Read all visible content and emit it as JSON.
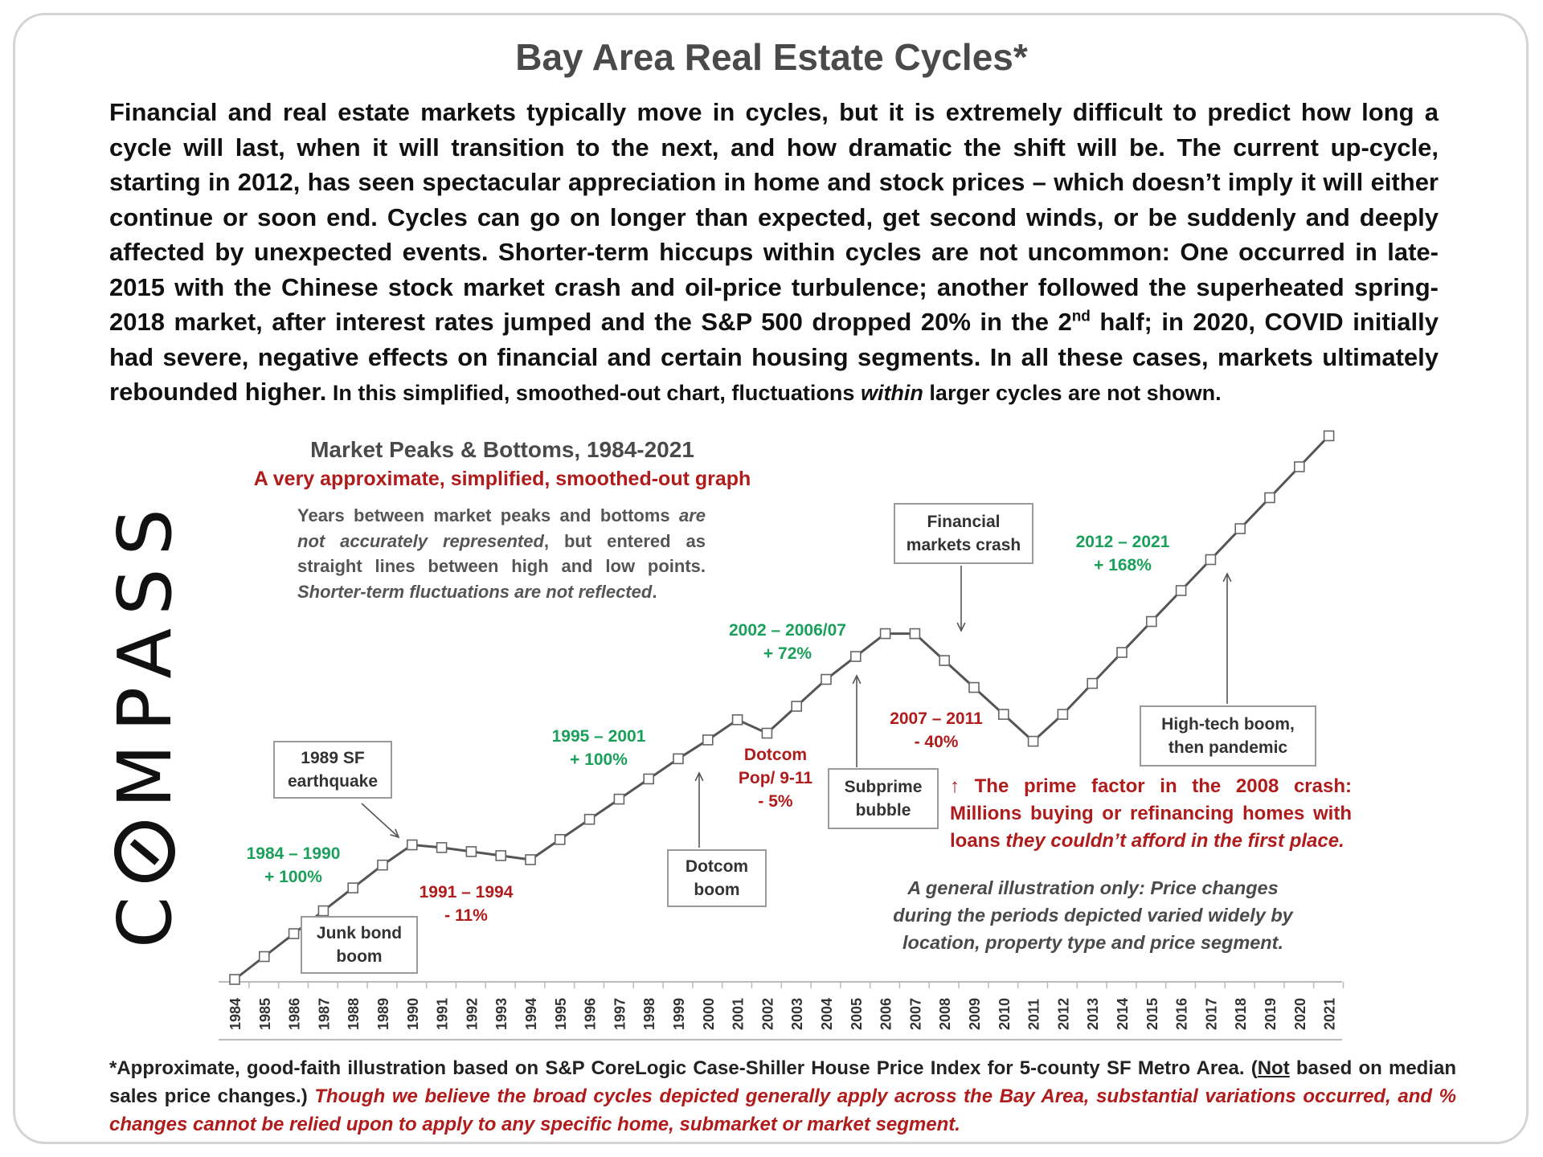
{
  "title": "Bay Area Real Estate Cycles*",
  "intro": {
    "part1": "Financial and real estate markets typically move in cycles, but it is extremely difficult to predict how long a cycle will last, when it will transition to the next, and how dramatic the shift will be. The current up-cycle, starting in 2012, has seen spectacular appreciation in home and stock prices – which doesn’t imply it will either continue or soon end. Cycles can go on longer than expected, get second winds, or be suddenly and deeply affected by unexpected events. Shorter-term hiccups within cycles are not uncommon: One occurred in late-2015 with the Chinese stock market crash and oil-price turbulence; another followed the superheated spring-2018 market, after interest rates jumped and the S&P 500 dropped 20% in the 2",
    "sup": "nd",
    "part2": " half; in 2020, COVID initially had severe, negative effects on financial and certain housing segments. In all these cases, markets ultimately rebounded higher.",
    "small_a": " In this simplified, smoothed-out chart, fluctuations ",
    "small_italic": "within",
    "small_b": " larger cycles are not shown."
  },
  "logo": {
    "before": "C",
    "after": "MPASS",
    "icon": "compass-o-icon"
  },
  "chart_header": {
    "title": "Market Peaks & Bottoms, 1984-2021",
    "subtitle": "A very approximate, simplified, smoothed-out graph",
    "note_a": "Years between market peaks and bottoms ",
    "note_italic1": "are not accurately represented",
    "note_b": ", but entered as straight lines between high and low points. ",
    "note_italic2": "Shorter-term fluctuations are not reflected",
    "note_c": "."
  },
  "chart_data": {
    "type": "line",
    "x": [
      "1984",
      "1985",
      "1986",
      "1987",
      "1988",
      "1989",
      "1990",
      "1991",
      "1992",
      "1993",
      "1994",
      "1995",
      "1996",
      "1997",
      "1998",
      "1999",
      "2000",
      "2001",
      "2002",
      "2003",
      "2004",
      "2005",
      "2006",
      "2007",
      "2008",
      "2009",
      "2010",
      "2011",
      "2012",
      "2013",
      "2014",
      "2015",
      "2016",
      "2017",
      "2018",
      "2019",
      "2020",
      "2021"
    ],
    "y": [
      0,
      17,
      34,
      51,
      68,
      85,
      100,
      98,
      95,
      92,
      89,
      104,
      119,
      134,
      149,
      164,
      178,
      193,
      183,
      203,
      223,
      240,
      257,
      257,
      237,
      217,
      197,
      177,
      197,
      220,
      243,
      266,
      289,
      312,
      335,
      358,
      381,
      404
    ],
    "marker": "hollow-square",
    "line_color": "#555555",
    "annotations": [
      {
        "id": "c1984",
        "line1": "1984 – 1990",
        "line2": "+ 100%",
        "color": "#1aa05a"
      },
      {
        "id": "c1991",
        "line1": "1991 – 1994",
        "line2": "- 11%",
        "color": "#b01b1b"
      },
      {
        "id": "c1995",
        "line1": "1995 – 2001",
        "line2": "+ 100%",
        "color": "#1aa05a"
      },
      {
        "id": "c2001",
        "line1": "Dotcom",
        "line2": "Pop/ 9-11",
        "line3": "- 5%",
        "color": "#b01b1b"
      },
      {
        "id": "c2002",
        "line1": "2002 – 2006/07",
        "line2": "+ 72%",
        "color": "#1aa05a"
      },
      {
        "id": "c2007",
        "line1": "2007 – 2011",
        "line2": "- 40%",
        "color": "#b01b1b"
      },
      {
        "id": "c2012",
        "line1": "2012 – 2021",
        "line2": "+ 168%",
        "color": "#1aa05a"
      }
    ],
    "boxes": [
      {
        "id": "quake",
        "line1": "1989 SF",
        "line2": "earthquake"
      },
      {
        "id": "junk",
        "line1": "Junk bond",
        "line2": "boom"
      },
      {
        "id": "dotcom",
        "line1": "Dotcom",
        "line2": "boom"
      },
      {
        "id": "subprime",
        "line1": "Subprime",
        "line2": "bubble"
      },
      {
        "id": "fincrash",
        "line1": "Financial",
        "line2": "markets crash"
      },
      {
        "id": "hightech",
        "line1": "High-tech boom,",
        "line2": "then pandemic"
      }
    ]
  },
  "prime_factor": {
    "arrow": "↑",
    "text_a": " The prime factor in the 2008 crash: Millions buying or refinancing homes with loans ",
    "text_italic": "they couldn’t afford in the first place."
  },
  "general_note": "A general illustration only: Price changes during the periods depicted varied widely by location, property type and price segment.",
  "footer": {
    "a": "*Approximate, good-faith illustration based on S&P CoreLogic Case-Shiller House Price Index for 5-county SF Metro Area. (",
    "underline": "Not",
    "b": " based on median sales price changes.) ",
    "italic": "Though we believe the broad cycles depicted generally apply across the Bay Area, substantial variations occurred, and % changes cannot be relied upon to apply to any specific home, submarket or market segment."
  }
}
